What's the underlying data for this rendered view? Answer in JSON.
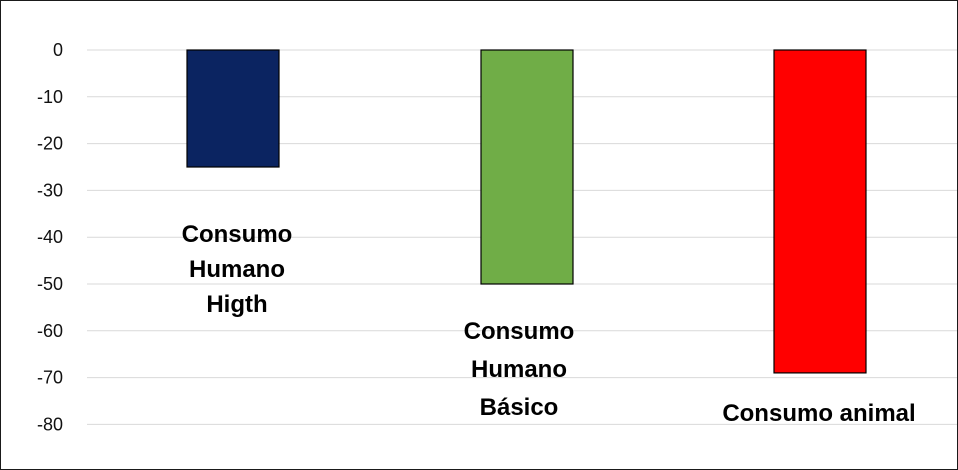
{
  "chart_data": {
    "type": "bar",
    "title": "",
    "xlabel": "",
    "ylabel": "",
    "categories": [
      [
        "Consumo",
        "Humano",
        "Higth"
      ],
      [
        "Consumo",
        "Humano",
        "Básico"
      ],
      [
        "Consumo animal"
      ]
    ],
    "values": [
      -25,
      -50,
      -69
    ],
    "colors": [
      "#0B2461",
      "#70AD47",
      "#FF0000"
    ],
    "ylim": [
      -90,
      0
    ],
    "yticks": [
      0,
      -10,
      -20,
      -30,
      -40,
      -50,
      -60,
      -70,
      -80
    ],
    "grid": true,
    "legend": "none"
  }
}
